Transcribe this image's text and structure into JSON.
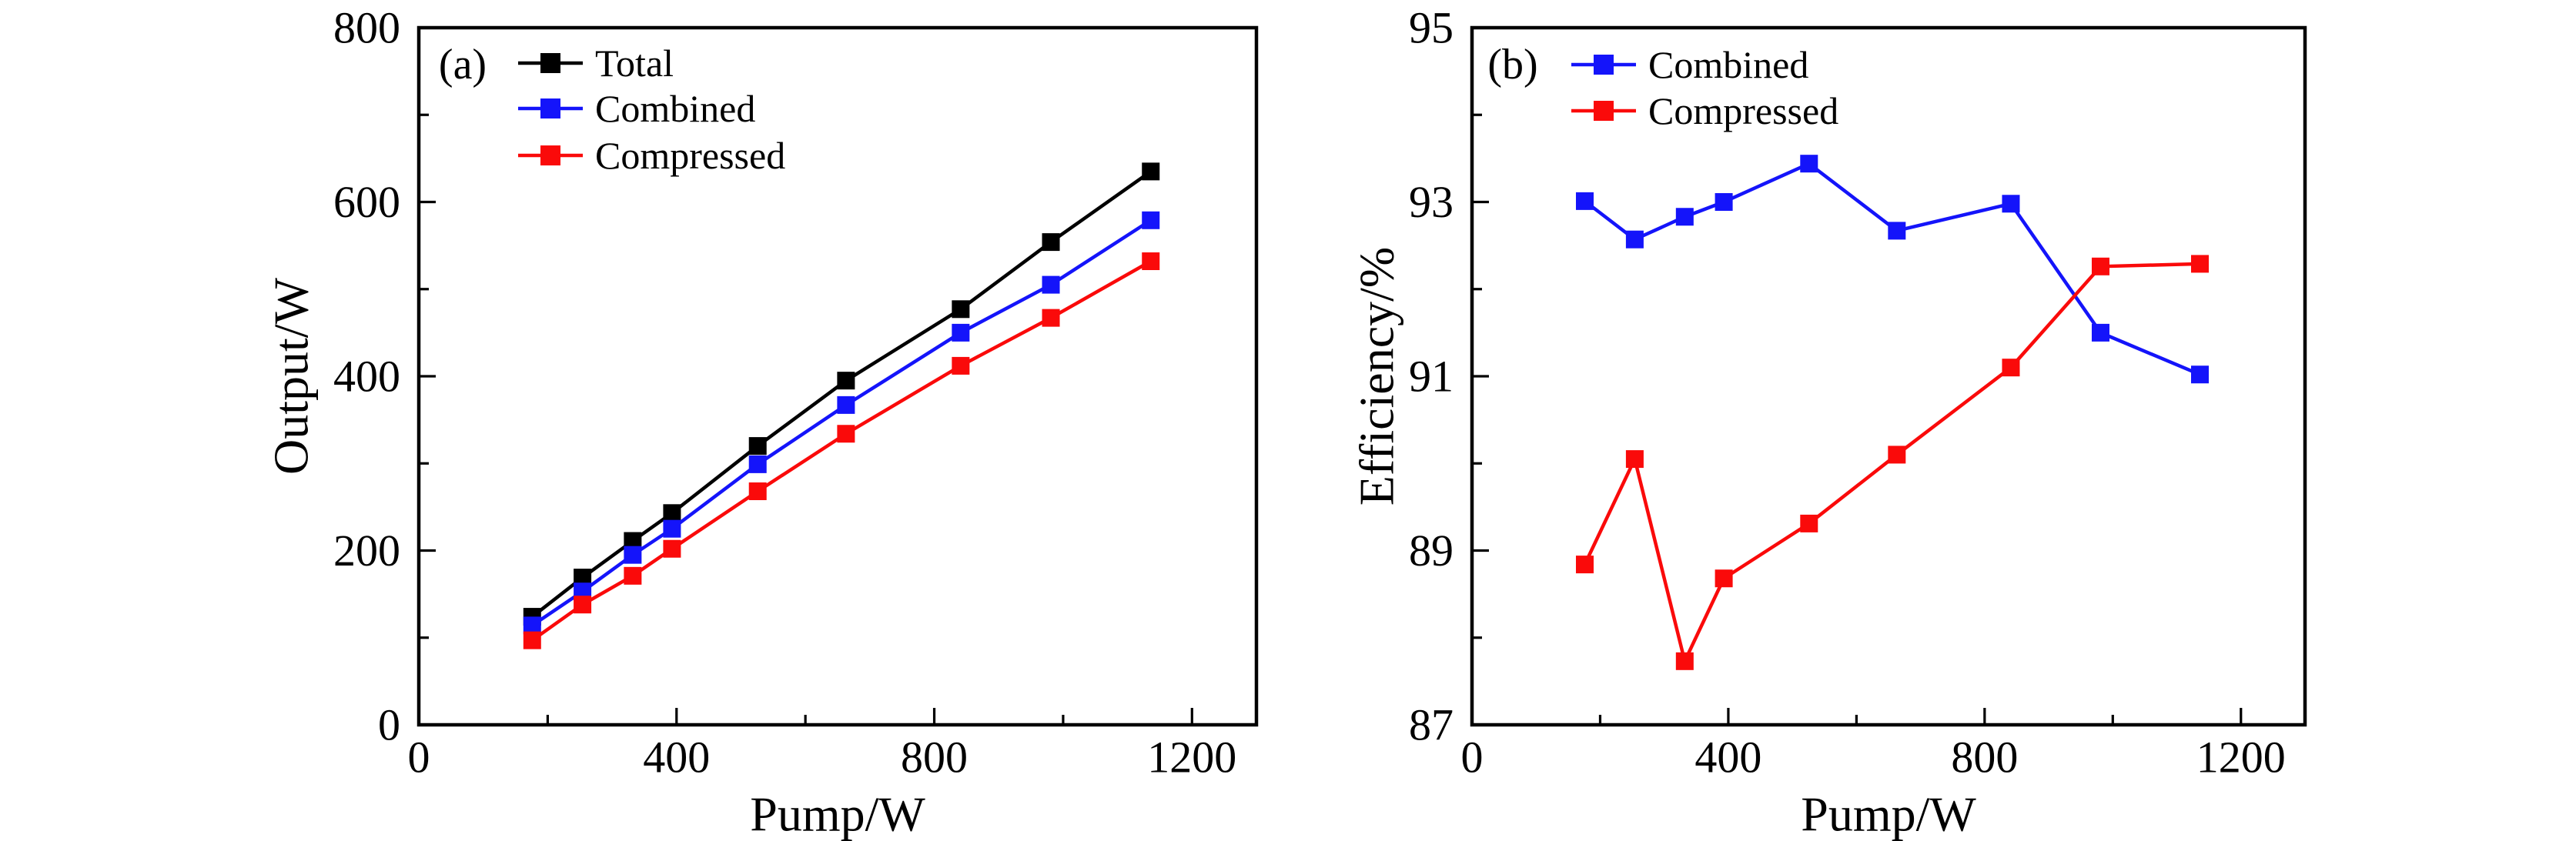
{
  "figure": {
    "background": "#ffffff",
    "text_color": "#000000"
  },
  "chart_data": [
    {
      "type": "line",
      "panel_tag": "(a)",
      "title": "",
      "xlabel": "Pump/W",
      "ylabel": "Output/W",
      "xlim": [
        0,
        1300
      ],
      "ylim": [
        0,
        800
      ],
      "xticks_major": [
        0,
        400,
        800,
        1200
      ],
      "xticks_minor": [
        200,
        600,
        1000
      ],
      "yticks_major": [
        0,
        200,
        400,
        600,
        800
      ],
      "yticks_minor": [
        100,
        300,
        500,
        700
      ],
      "grid": false,
      "legend_position": "top-left",
      "marker": "square",
      "x": [
        176,
        254,
        332,
        393,
        526,
        663,
        841,
        981,
        1136
      ],
      "series": [
        {
          "name": "Total",
          "color": "#000000",
          "values": [
            124,
            169,
            211,
            243,
            320,
            395,
            477,
            554,
            635
          ]
        },
        {
          "name": "Combined",
          "color": "#1414FA",
          "values": [
            114,
            153,
            195,
            225,
            299,
            367,
            450,
            505,
            579
          ]
        },
        {
          "name": "Compressed",
          "color": "#FA0A0A",
          "values": [
            97,
            138,
            171,
            202,
            268,
            334,
            412,
            467,
            532
          ]
        }
      ]
    },
    {
      "type": "line",
      "panel_tag": "(b)",
      "title": "",
      "xlabel": "Pump/W",
      "ylabel": "Efficiency/%",
      "xlim": [
        0,
        1300
      ],
      "ylim": [
        87,
        95
      ],
      "xticks_major": [
        0,
        400,
        800,
        1200
      ],
      "xticks_minor": [
        200,
        600,
        1000
      ],
      "yticks_major": [
        87,
        89,
        91,
        93,
        95
      ],
      "yticks_minor": [
        88,
        90,
        92,
        94
      ],
      "grid": false,
      "legend_position": "top-left",
      "marker": "square",
      "x": [
        176,
        254,
        332,
        393,
        526,
        663,
        841,
        981,
        1136
      ],
      "series": [
        {
          "name": "Combined",
          "color": "#1414FA",
          "values": [
            93.01,
            92.57,
            92.83,
            93.0,
            93.44,
            92.67,
            92.98,
            91.5,
            91.02
          ]
        },
        {
          "name": "Compressed",
          "color": "#FA0A0A",
          "values": [
            88.84,
            90.05,
            87.73,
            88.68,
            89.31,
            90.1,
            91.1,
            92.26,
            92.29
          ]
        }
      ]
    }
  ]
}
